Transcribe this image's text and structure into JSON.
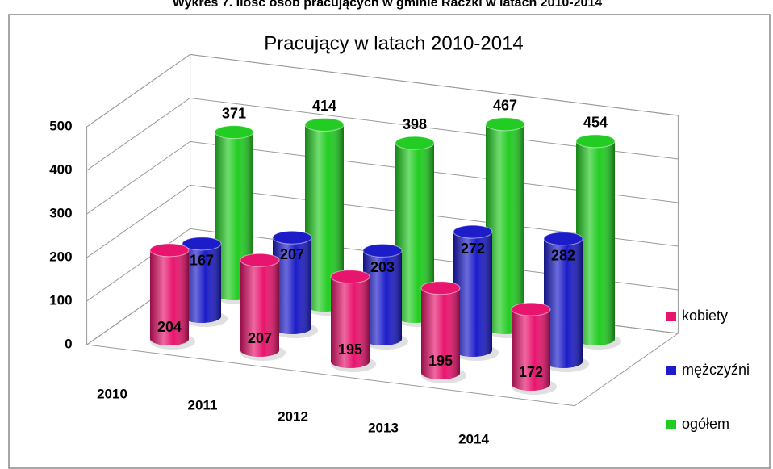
{
  "caption": "Wykres 7. Ilość osób pracujących w gminie Raczki w latach 2010-2014",
  "chart_data": {
    "type": "cylinder3d",
    "title": "Pracujący w latach 2010-2014",
    "categories": [
      "2010",
      "2011",
      "2012",
      "2013",
      "2014"
    ],
    "series": [
      {
        "name": "kobiety",
        "color": "#e8156e",
        "values": [
          204,
          207,
          195,
          195,
          172
        ]
      },
      {
        "name": "mężczyźni",
        "color": "#1c1cc8",
        "values": [
          167,
          207,
          203,
          272,
          282
        ]
      },
      {
        "name": "ogółem",
        "color": "#22cc22",
        "values": [
          371,
          414,
          398,
          467,
          454
        ]
      }
    ],
    "ylim": [
      0,
      500
    ],
    "yticks": [
      0,
      100,
      200,
      300,
      400,
      500
    ],
    "grid": true,
    "legend": "right"
  }
}
